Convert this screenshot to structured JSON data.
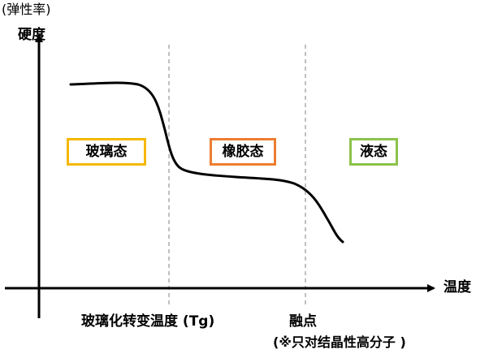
{
  "diagram": {
    "note_top": "(弹性率)",
    "y_axis_label": "硬度",
    "x_axis_label": "温度",
    "glass_transition_label": "玻璃化转变温度 (Tg)",
    "melting_point_label": "融点",
    "melting_point_note": "(※只对结晶性高分子 )",
    "states": [
      {
        "label": "玻璃态",
        "color": "#f5b800"
      },
      {
        "label": "橡胶态",
        "color": "#ed7d31"
      },
      {
        "label": "液态",
        "color": "#8bc34a"
      }
    ],
    "colors": {
      "axis": "#000000",
      "curve": "#000000",
      "divider": "#808080"
    }
  }
}
